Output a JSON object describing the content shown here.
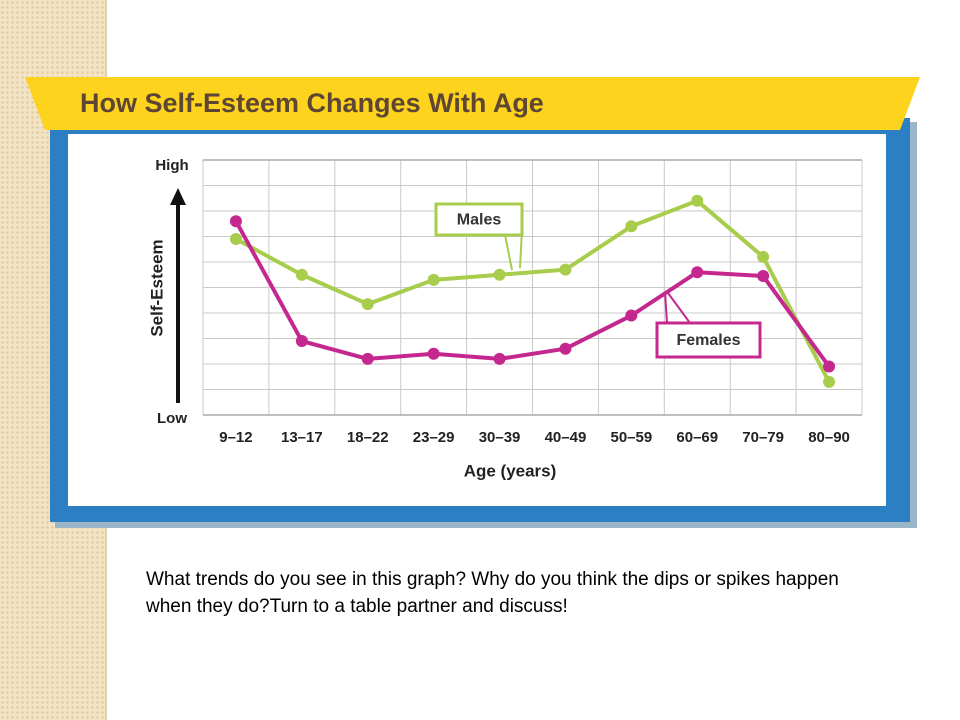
{
  "chart_data": {
    "type": "line",
    "title": "How Self-Esteem Changes With Age",
    "x_label": "Age (years)",
    "y_label": "Self-Esteem",
    "categories": [
      "9–12",
      "13–17",
      "18–22",
      "23–29",
      "30–39",
      "40–49",
      "50–59",
      "60–69",
      "70–79",
      "80–90"
    ],
    "series": [
      {
        "name": "Males",
        "color": "#a8cc4c",
        "values": [
          6.9,
          5.5,
          4.35,
          5.3,
          5.5,
          5.7,
          7.4,
          8.4,
          6.2,
          1.3
        ]
      },
      {
        "name": "Females",
        "color": "#c4288f",
        "values": [
          7.6,
          2.9,
          2.2,
          2.4,
          2.2,
          2.6,
          3.9,
          5.6,
          5.45,
          1.9
        ]
      }
    ],
    "ylim": [
      0,
      10
    ],
    "yticks": [
      {
        "value": 0,
        "label": "Low"
      },
      {
        "value": 10,
        "label": "High"
      }
    ],
    "grid": true
  },
  "caption": "What trends do you see in this graph? Why do you think the dips or spikes happen when they do?Turn to a table partner and discuss!"
}
